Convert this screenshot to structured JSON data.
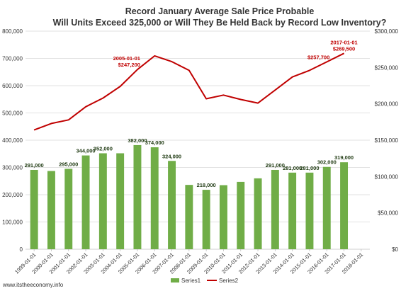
{
  "chart_data": {
    "type": "bar",
    "title": "Record January Average Sale Price Probable",
    "subtitle": "Will Units Exceed 325,000 or Will They Be Held Back by Record Low Inventory?",
    "categories": [
      "1999-01-01",
      "2000-01-01",
      "2001-01-01",
      "2002-01-01",
      "2003-01-01",
      "2004-01-01",
      "2005-01-01",
      "2006-01-01",
      "2007-01-01",
      "2008-01-01",
      "2009-01-01",
      "2010-01-01",
      "2011-01-01",
      "2012-01-01",
      "2013-01-01",
      "2014-01-01",
      "2015-01-01",
      "2016-01-01",
      "2017-01-01",
      "2018-01-01"
    ],
    "series": [
      {
        "name": "Series1",
        "type": "bar",
        "axis": "left",
        "color": "#70ad47",
        "values": [
          291000,
          287000,
          295000,
          344000,
          352000,
          352000,
          382000,
          374000,
          324000,
          236000,
          218000,
          235000,
          247000,
          260000,
          291000,
          281000,
          281000,
          302000,
          319000,
          null
        ],
        "labels": [
          "291,000",
          "",
          "295,000",
          "344,000",
          "352,000",
          "",
          "382,000",
          "374,000",
          "324,000",
          "",
          "218,000",
          "",
          "",
          "",
          "291,000",
          "281,000",
          "281,000",
          "302,000",
          "319,000",
          ""
        ]
      },
      {
        "name": "Series2",
        "type": "line",
        "axis": "right",
        "color": "#c00000",
        "values": [
          164000,
          173000,
          178000,
          196000,
          208000,
          224000,
          247200,
          266000,
          258000,
          246000,
          207000,
          212000,
          206000,
          201000,
          219000,
          237000,
          246000,
          257700,
          269500,
          null
        ],
        "labels": [
          {
            "index": 6,
            "lines": [
              "2005-01-01",
              "$247,200"
            ]
          },
          {
            "index": 17,
            "lines": [
              "$257,700"
            ]
          },
          {
            "index": 18,
            "lines": [
              "2017-01-01",
              "$269,500"
            ]
          }
        ]
      }
    ],
    "ylim_left": [
      0,
      800000
    ],
    "yticks_left": [
      "0",
      "100,000",
      "200,000",
      "300,000",
      "400,000",
      "500,000",
      "600,000",
      "700,000",
      "800,000"
    ],
    "ylim_right": [
      0,
      300000
    ],
    "yticks_right": [
      "$0",
      "$50,000",
      "$100,000",
      "$150,000",
      "$200,000",
      "$250,000",
      "$300,000"
    ],
    "grid": true,
    "legend_position": "bottom-center"
  },
  "footer": {
    "source": "www.itstheeconomy.info"
  }
}
